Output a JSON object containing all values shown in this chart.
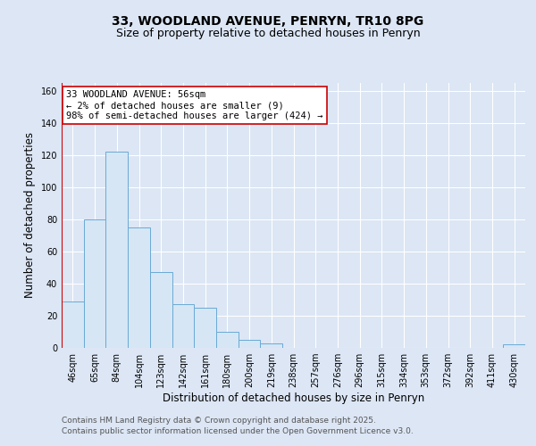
{
  "title_line1": "33, WOODLAND AVENUE, PENRYN, TR10 8PG",
  "title_line2": "Size of property relative to detached houses in Penryn",
  "xlabel": "Distribution of detached houses by size in Penryn",
  "ylabel": "Number of detached properties",
  "categories": [
    "46sqm",
    "65sqm",
    "84sqm",
    "104sqm",
    "123sqm",
    "142sqm",
    "161sqm",
    "180sqm",
    "200sqm",
    "219sqm",
    "238sqm",
    "257sqm",
    "276sqm",
    "296sqm",
    "315sqm",
    "334sqm",
    "353sqm",
    "372sqm",
    "392sqm",
    "411sqm",
    "430sqm"
  ],
  "values": [
    29,
    80,
    122,
    75,
    47,
    27,
    25,
    10,
    5,
    3,
    0,
    0,
    0,
    0,
    0,
    0,
    0,
    0,
    0,
    0,
    2
  ],
  "bar_color": "#d6e6f5",
  "bar_edge_color": "#6aaad4",
  "vline_color": "#cc0000",
  "vline_pos": -0.5,
  "annotation_text": "33 WOODLAND AVENUE: 56sqm\n← 2% of detached houses are smaller (9)\n98% of semi-detached houses are larger (424) →",
  "annotation_box_facecolor": "#ffffff",
  "annotation_box_edgecolor": "#cc0000",
  "ylim": [
    0,
    165
  ],
  "yticks": [
    0,
    20,
    40,
    60,
    80,
    100,
    120,
    140,
    160
  ],
  "bg_color": "#dce6f5",
  "plot_bg_color": "#dce6f5",
  "grid_color": "#ffffff",
  "footer_line1": "Contains HM Land Registry data © Crown copyright and database right 2025.",
  "footer_line2": "Contains public sector information licensed under the Open Government Licence v3.0.",
  "title_fontsize": 10,
  "subtitle_fontsize": 9,
  "axis_label_fontsize": 8.5,
  "tick_fontsize": 7,
  "annotation_fontsize": 7.5,
  "footer_fontsize": 6.5
}
